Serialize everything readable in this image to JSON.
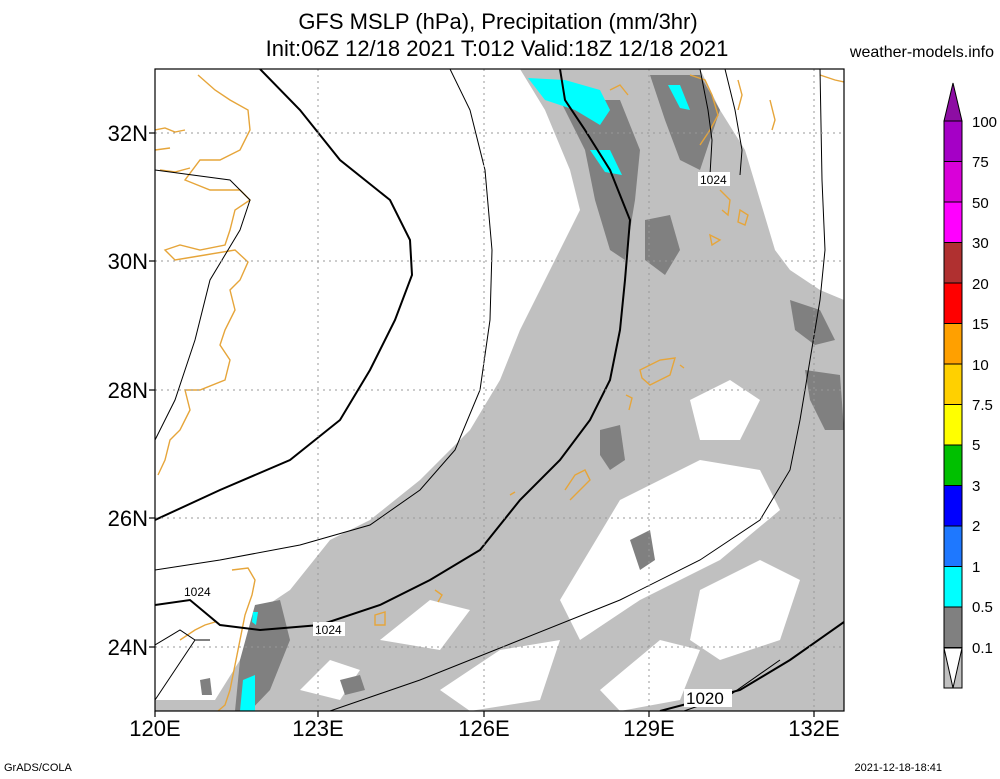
{
  "header": {
    "title_line1": "GFS MSLP (hPa), Precipitation (mm/3hr)",
    "title_line2": "Init:06Z 12/18 2021 T:012 Valid:18Z 12/18 2021",
    "site": "weather-models.info"
  },
  "footer": {
    "left": "GrADS/COLA",
    "right": "2021-12-18-18:41"
  },
  "axes": {
    "lat_labels": [
      "32N",
      "30N",
      "28N",
      "26N",
      "24N"
    ],
    "lon_labels": [
      "120E",
      "123E",
      "126E",
      "129E",
      "132E"
    ]
  },
  "contour_labels": [
    "1024",
    "1024",
    "1024",
    "1020"
  ],
  "colorbar": {
    "levels": [
      "100",
      "75",
      "50",
      "30",
      "20",
      "15",
      "10",
      "7.5",
      "5",
      "3",
      "2",
      "1",
      "0.5",
      "0.1"
    ],
    "colors": [
      "#8d0da3",
      "#a500c6",
      "#d900d9",
      "#ff00ff",
      "#b03030",
      "#ff0000",
      "#ffa000",
      "#ffd000",
      "#ffff00",
      "#00c000",
      "#0000ff",
      "#1e78ff",
      "#00ffff",
      "#808080",
      "#c0c0c0",
      "#ffffff"
    ]
  },
  "map": {
    "precip_colors": {
      "light": "#c0c0c0",
      "medium": "#808080",
      "cyan": "#00ffff"
    },
    "coast_color": "#e6a53a"
  }
}
